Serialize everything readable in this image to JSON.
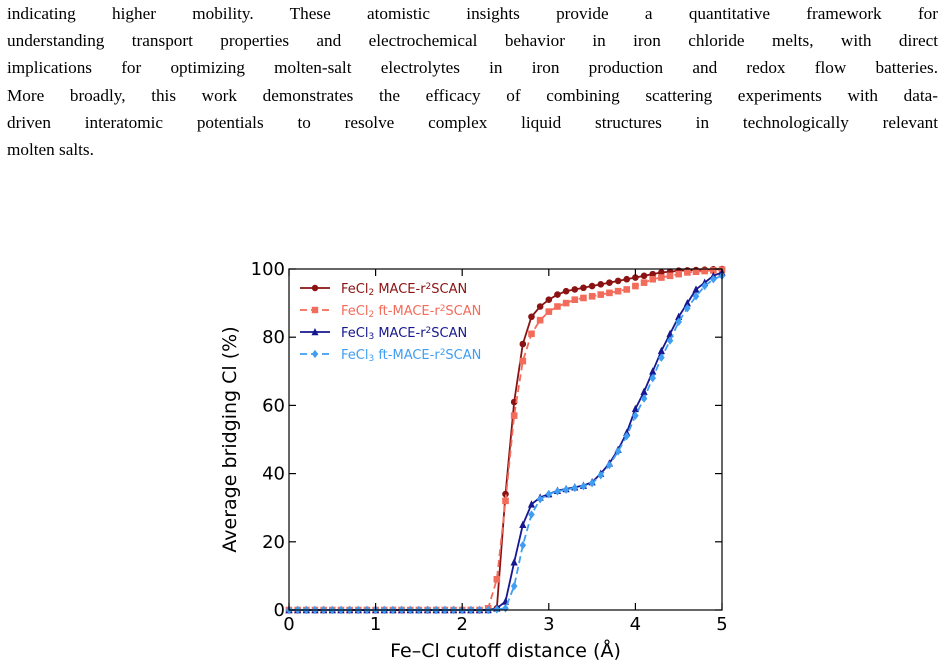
{
  "paragraph": {
    "lines": [
      "indicating higher mobility. These atomistic insights provide a quantitative framework for",
      "understanding transport properties and electrochemical behavior in iron chloride melts, with direct",
      "implications for optimizing molten-salt electrolytes in iron production and redox flow batteries.",
      "More broadly, this work demonstrates the efficacy of combining scattering experiments with data-",
      "driven interatomic potentials to resolve complex liquid structures in technologically relevant",
      "molten salts."
    ]
  },
  "chart_data": {
    "type": "line",
    "xlabel": "Fe–Cl cutoff distance (Å)",
    "ylabel": "Average bridging Cl (%)",
    "xlim": [
      0,
      5
    ],
    "ylim": [
      0,
      100
    ],
    "xticks": [
      "0",
      "1",
      "2",
      "3",
      "4",
      "5"
    ],
    "yticks": [
      "0",
      "20",
      "40",
      "60",
      "80",
      "100"
    ],
    "legend_position": "top-left",
    "grid": false,
    "x": [
      0.0,
      0.1,
      0.2,
      0.3,
      0.4,
      0.5,
      0.6,
      0.7,
      0.8,
      0.9,
      1.0,
      1.1,
      1.2,
      1.3,
      1.4,
      1.5,
      1.6,
      1.7,
      1.8,
      1.9,
      2.0,
      2.1,
      2.2,
      2.3,
      2.4,
      2.5,
      2.6,
      2.7,
      2.8,
      2.9,
      3.0,
      3.1,
      3.2,
      3.3,
      3.4,
      3.5,
      3.6,
      3.7,
      3.8,
      3.9,
      4.0,
      4.1,
      4.2,
      4.3,
      4.4,
      4.5,
      4.6,
      4.7,
      4.8,
      4.9,
      5.0
    ],
    "series": [
      {
        "name_main": "FeCl",
        "name_sub": "2",
        "name_mid": " MACE-r",
        "name_sup": "2",
        "name_end": "SCAN",
        "color": "#8b1212",
        "dash": false,
        "marker": "circle",
        "values": [
          0,
          0,
          0,
          0,
          0,
          0,
          0,
          0,
          0,
          0,
          0,
          0,
          0,
          0,
          0,
          0,
          0,
          0,
          0,
          0,
          0,
          0,
          0,
          0,
          0.5,
          34,
          61,
          78,
          86,
          89,
          91,
          92.5,
          93.5,
          94,
          94.5,
          95,
          95.5,
          96,
          96.5,
          97,
          97.5,
          98,
          98.5,
          99,
          99.2,
          99.5,
          99.6,
          99.7,
          99.8,
          99.9,
          100
        ]
      },
      {
        "name_main": "FeCl",
        "name_sub": "2",
        "name_mid": " ft-MACE-r",
        "name_sup": "2",
        "name_end": "SCAN",
        "color": "#f36b5a",
        "dash": true,
        "marker": "square",
        "values": [
          0,
          0,
          0,
          0,
          0,
          0,
          0,
          0,
          0,
          0,
          0,
          0,
          0,
          0,
          0,
          0,
          0,
          0,
          0,
          0,
          0,
          0,
          0,
          0.5,
          9,
          32,
          57,
          73,
          81,
          85,
          87.5,
          89,
          90,
          91,
          91.5,
          92,
          92.5,
          93,
          93.5,
          94,
          95,
          96,
          97,
          97.5,
          98,
          98.5,
          99,
          99.2,
          99.4,
          99.6,
          99.8
        ]
      },
      {
        "name_main": "FeCl",
        "name_sub": "3",
        "name_mid": " MACE-r",
        "name_sup": "2",
        "name_end": "SCAN",
        "color": "#17178f",
        "dash": false,
        "marker": "triangle",
        "values": [
          0,
          0,
          0,
          0,
          0,
          0,
          0,
          0,
          0,
          0,
          0,
          0,
          0,
          0,
          0,
          0,
          0,
          0,
          0,
          0,
          0,
          0,
          0,
          0,
          0.5,
          2.5,
          14,
          25,
          31,
          33,
          34,
          35,
          35.5,
          36,
          36.5,
          37.5,
          40,
          43,
          47,
          52,
          59,
          64,
          70,
          76,
          81,
          86,
          90,
          94,
          96,
          98,
          99
        ]
      },
      {
        "name_main": "FeCl",
        "name_sub": "3",
        "name_mid": " ft-MACE-r",
        "name_sup": "2",
        "name_end": "SCAN",
        "color": "#3f9ef2",
        "dash": true,
        "marker": "diamond",
        "values": [
          0,
          0,
          0,
          0,
          0,
          0,
          0,
          0,
          0,
          0,
          0,
          0,
          0,
          0,
          0,
          0,
          0,
          0,
          0,
          0,
          0,
          0,
          0,
          0,
          0.2,
          0.5,
          7,
          19,
          28,
          32.5,
          34,
          34.8,
          35.3,
          35.8,
          36.3,
          37.2,
          39.5,
          42.5,
          46.5,
          51,
          57,
          62,
          68,
          74,
          79,
          84.5,
          88.5,
          92,
          95,
          97,
          98
        ]
      }
    ]
  }
}
